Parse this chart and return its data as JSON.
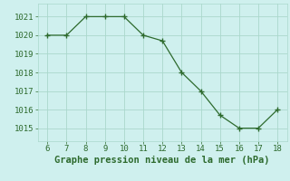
{
  "x": [
    6,
    7,
    8,
    9,
    10,
    11,
    12,
    13,
    14,
    15,
    16,
    17,
    18
  ],
  "y": [
    1020.0,
    1020.0,
    1021.0,
    1021.0,
    1021.0,
    1020.0,
    1019.7,
    1018.0,
    1017.0,
    1015.7,
    1015.0,
    1015.0,
    1016.0
  ],
  "xlim": [
    5.5,
    18.5
  ],
  "ylim": [
    1014.3,
    1021.7
  ],
  "xticks": [
    6,
    7,
    8,
    9,
    10,
    11,
    12,
    13,
    14,
    15,
    16,
    17,
    18
  ],
  "yticks": [
    1015,
    1016,
    1017,
    1018,
    1019,
    1020,
    1021
  ],
  "xlabel": "Graphe pression niveau de la mer (hPa)",
  "line_color": "#2d6a2d",
  "marker_color": "#2d6a2d",
  "bg_color": "#cff0ee",
  "grid_color": "#aad8cc",
  "tick_fontsize": 6.5,
  "label_fontsize": 7.5
}
